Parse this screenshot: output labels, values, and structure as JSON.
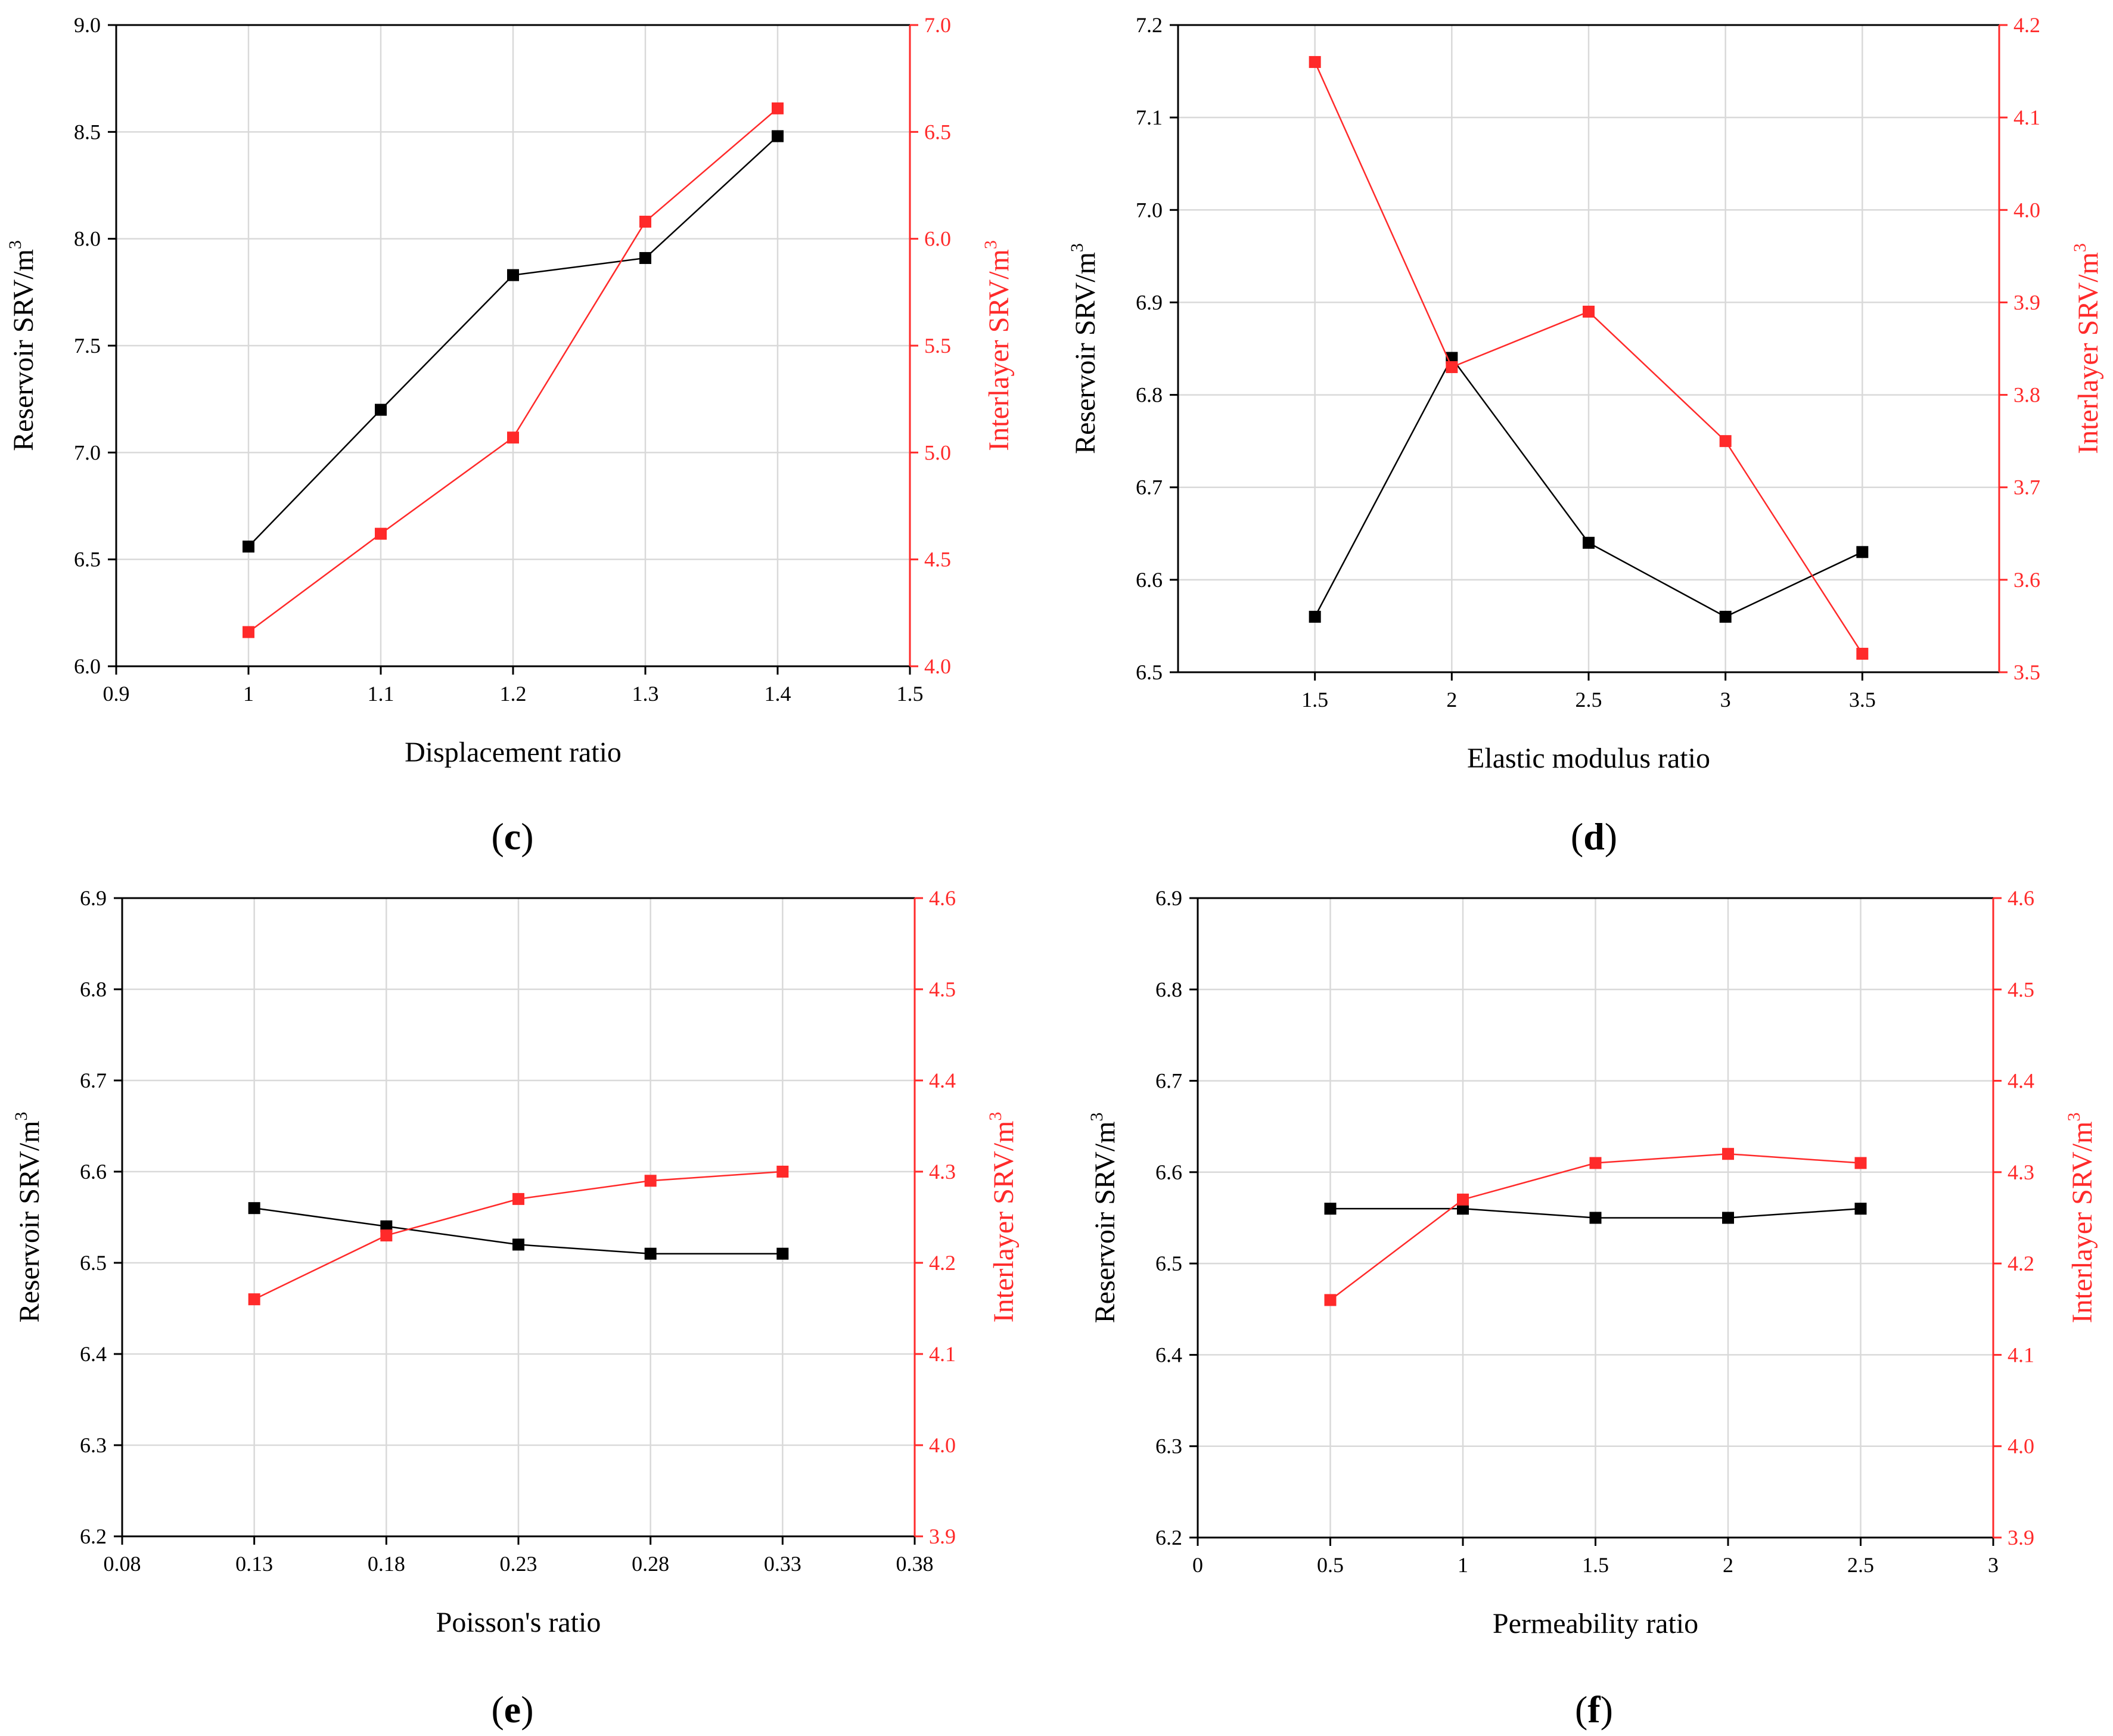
{
  "colors": {
    "reservoir": "#000000",
    "interlayer": "#ff2a2a",
    "grid": "#d9d9d9"
  },
  "chart_data": [
    {
      "type": "line",
      "panel_label": "c",
      "xlabel": "Displacement ratio",
      "ylabel_left": "Reservoir SRV/m",
      "ylabel_right": "Interlayer SRV/m",
      "ylabel_sup": "3",
      "xlim": [
        0.9,
        1.5
      ],
      "xticks": [
        0.9,
        1,
        1.1,
        1.2,
        1.3,
        1.4,
        1.5
      ],
      "xtick_labels": [
        "0.9",
        "1",
        "1.1",
        "1.2",
        "1.3",
        "1.4",
        "1.5"
      ],
      "ylim_left": [
        6.0,
        9.0
      ],
      "yticks_left": [
        6.0,
        6.5,
        7.0,
        7.5,
        8.0,
        8.5,
        9.0
      ],
      "ytick_labels_left": [
        "6.0",
        "6.5",
        "7.0",
        "7.5",
        "8.0",
        "8.5",
        "9.0"
      ],
      "ylim_right": [
        4.0,
        7.0
      ],
      "yticks_right": [
        4.0,
        4.5,
        5.0,
        5.5,
        6.0,
        6.5,
        7.0
      ],
      "ytick_labels_right": [
        "4.0",
        "4.5",
        "5.0",
        "5.5",
        "6.0",
        "6.5",
        "7.0"
      ],
      "x": [
        1,
        1.1,
        1.2,
        1.3,
        1.4
      ],
      "series": [
        {
          "name": "Reservoir SRV",
          "axis": "left",
          "values": [
            6.56,
            7.2,
            7.83,
            7.91,
            8.48
          ]
        },
        {
          "name": "Interlayer SRV",
          "axis": "right",
          "values": [
            4.16,
            4.62,
            5.07,
            6.08,
            6.61
          ]
        }
      ]
    },
    {
      "type": "line",
      "panel_label": "d",
      "xlabel": "Elastic modulus ratio",
      "ylabel_left": "Reservoir SRV/m",
      "ylabel_right": "Interlayer SRV/m",
      "ylabel_sup": "3",
      "xlim": [
        1.0,
        4.0
      ],
      "xticks": [
        1.5,
        2,
        2.5,
        3,
        3.5
      ],
      "xtick_labels": [
        "1.5",
        "2",
        "2.5",
        "3",
        "3.5"
      ],
      "ylim_left": [
        6.5,
        7.2
      ],
      "yticks_left": [
        6.5,
        6.6,
        6.7,
        6.8,
        6.9,
        7.0,
        7.1,
        7.2
      ],
      "ytick_labels_left": [
        "6.5",
        "6.6",
        "6.7",
        "6.8",
        "6.9",
        "7.0",
        "7.1",
        "7.2"
      ],
      "ylim_right": [
        3.5,
        4.2
      ],
      "yticks_right": [
        3.5,
        3.6,
        3.7,
        3.8,
        3.9,
        4.0,
        4.1,
        4.2
      ],
      "ytick_labels_right": [
        "3.5",
        "3.6",
        "3.7",
        "3.8",
        "3.9",
        "4.0",
        "4.1",
        "4.2"
      ],
      "x": [
        1.5,
        2,
        2.5,
        3,
        3.5
      ],
      "series": [
        {
          "name": "Reservoir SRV",
          "axis": "left",
          "values": [
            6.56,
            6.84,
            6.64,
            6.56,
            6.63
          ]
        },
        {
          "name": "Interlayer SRV",
          "axis": "right",
          "values": [
            4.16,
            3.83,
            3.89,
            3.75,
            3.52
          ]
        }
      ]
    },
    {
      "type": "line",
      "panel_label": "e",
      "xlabel": "Poisson's ratio",
      "ylabel_left": "Reservoir SRV/m",
      "ylabel_right": "Interlayer SRV/m",
      "ylabel_sup": "3",
      "xlim": [
        0.08,
        0.38
      ],
      "xticks": [
        0.08,
        0.13,
        0.18,
        0.23,
        0.28,
        0.33,
        0.38
      ],
      "xtick_labels": [
        "0.08",
        "0.13",
        "0.18",
        "0.23",
        "0.28",
        "0.33",
        "0.38"
      ],
      "ylim_left": [
        6.2,
        6.9
      ],
      "yticks_left": [
        6.2,
        6.3,
        6.4,
        6.5,
        6.6,
        6.7,
        6.8,
        6.9
      ],
      "ytick_labels_left": [
        "6.2",
        "6.3",
        "6.4",
        "6.5",
        "6.6",
        "6.7",
        "6.8",
        "6.9"
      ],
      "ylim_right": [
        3.9,
        4.6
      ],
      "yticks_right": [
        3.9,
        4.0,
        4.1,
        4.2,
        4.3,
        4.4,
        4.5,
        4.6
      ],
      "ytick_labels_right": [
        "3.9",
        "4.0",
        "4.1",
        "4.2",
        "4.3",
        "4.4",
        "4.5",
        "4.6"
      ],
      "x": [
        0.13,
        0.18,
        0.23,
        0.28,
        0.33
      ],
      "series": [
        {
          "name": "Reservoir SRV",
          "axis": "left",
          "values": [
            6.56,
            6.54,
            6.52,
            6.51,
            6.51
          ]
        },
        {
          "name": "Interlayer SRV",
          "axis": "right",
          "values": [
            4.16,
            4.23,
            4.27,
            4.29,
            4.3
          ]
        }
      ]
    },
    {
      "type": "line",
      "panel_label": "f",
      "xlabel": "Permeability ratio",
      "ylabel_left": "Reservoir SRV/m",
      "ylabel_right": "Interlayer SRV/m",
      "ylabel_sup": "3",
      "xlim": [
        0,
        3
      ],
      "xticks": [
        0,
        0.5,
        1,
        1.5,
        2,
        2.5,
        3
      ],
      "xtick_labels": [
        "0",
        "0.5",
        "1",
        "1.5",
        "2",
        "2.5",
        "3"
      ],
      "ylim_left": [
        6.2,
        6.9
      ],
      "yticks_left": [
        6.2,
        6.3,
        6.4,
        6.5,
        6.6,
        6.7,
        6.8,
        6.9
      ],
      "ytick_labels_left": [
        "6.2",
        "6.3",
        "6.4",
        "6.5",
        "6.6",
        "6.7",
        "6.8",
        "6.9"
      ],
      "ylim_right": [
        3.9,
        4.6
      ],
      "yticks_right": [
        3.9,
        4.0,
        4.1,
        4.2,
        4.3,
        4.4,
        4.5,
        4.6
      ],
      "ytick_labels_right": [
        "3.9",
        "4.0",
        "4.1",
        "4.2",
        "4.3",
        "4.4",
        "4.5",
        "4.6"
      ],
      "x": [
        0.5,
        1,
        1.5,
        2,
        2.5
      ],
      "series": [
        {
          "name": "Reservoir SRV",
          "axis": "left",
          "values": [
            6.56,
            6.56,
            6.55,
            6.55,
            6.56
          ]
        },
        {
          "name": "Interlayer SRV",
          "axis": "right",
          "values": [
            4.16,
            4.27,
            4.31,
            4.32,
            4.31
          ]
        }
      ]
    }
  ]
}
